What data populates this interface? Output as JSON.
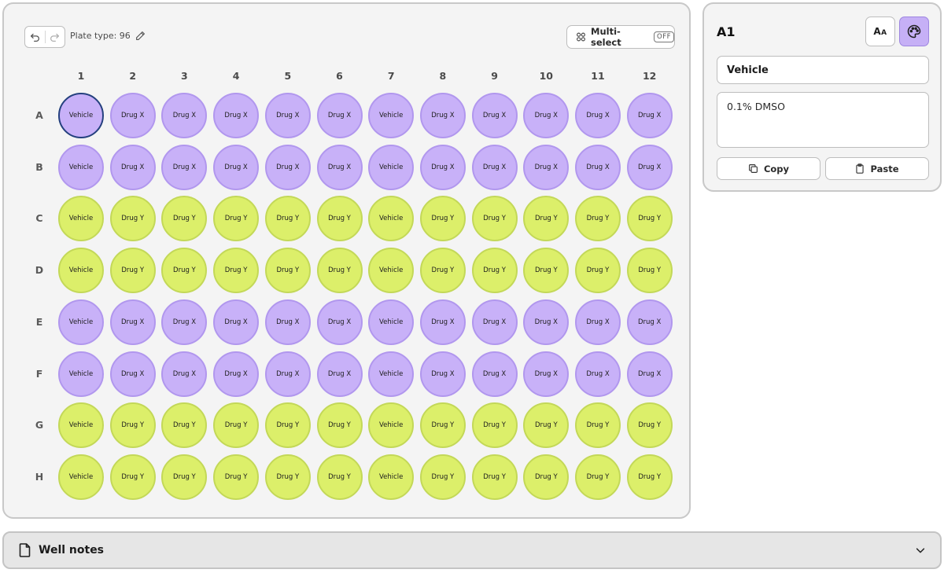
{
  "toolbar": {
    "plate_type_label": "Plate type: 96",
    "multi_select_label": "Multi-select",
    "multi_select_state": "OFF"
  },
  "plate": {
    "columns": [
      "1",
      "2",
      "3",
      "4",
      "5",
      "6",
      "7",
      "8",
      "9",
      "10",
      "11",
      "12"
    ],
    "rows": [
      "A",
      "B",
      "C",
      "D",
      "E",
      "F",
      "G",
      "H"
    ],
    "selected_well": "A1",
    "colors": {
      "purple": "#c8b1f8",
      "yellow": "#dcef6a",
      "selected_border": "#24407e"
    },
    "wells": [
      [
        "Vehicle",
        "Drug X",
        "Drug X",
        "Drug X",
        "Drug X",
        "Drug X",
        "Vehicle",
        "Drug X",
        "Drug X",
        "Drug X",
        "Drug X",
        "Drug X"
      ],
      [
        "Vehicle",
        "Drug X",
        "Drug X",
        "Drug X",
        "Drug X",
        "Drug X",
        "Vehicle",
        "Drug X",
        "Drug X",
        "Drug X",
        "Drug X",
        "Drug X"
      ],
      [
        "Vehicle",
        "Drug Y",
        "Drug Y",
        "Drug Y",
        "Drug Y",
        "Drug Y",
        "Vehicle",
        "Drug Y",
        "Drug Y",
        "Drug Y",
        "Drug Y",
        "Drug Y"
      ],
      [
        "Vehicle",
        "Drug Y",
        "Drug Y",
        "Drug Y",
        "Drug Y",
        "Drug Y",
        "Vehicle",
        "Drug Y",
        "Drug Y",
        "Drug Y",
        "Drug Y",
        "Drug Y"
      ],
      [
        "Vehicle",
        "Drug X",
        "Drug X",
        "Drug X",
        "Drug X",
        "Drug X",
        "Vehicle",
        "Drug X",
        "Drug X",
        "Drug X",
        "Drug X",
        "Drug X"
      ],
      [
        "Vehicle",
        "Drug X",
        "Drug X",
        "Drug X",
        "Drug X",
        "Drug X",
        "Vehicle",
        "Drug X",
        "Drug X",
        "Drug X",
        "Drug X",
        "Drug X"
      ],
      [
        "Vehicle",
        "Drug Y",
        "Drug Y",
        "Drug Y",
        "Drug Y",
        "Drug Y",
        "Vehicle",
        "Drug Y",
        "Drug Y",
        "Drug Y",
        "Drug Y",
        "Drug Y"
      ],
      [
        "Vehicle",
        "Drug Y",
        "Drug Y",
        "Drug Y",
        "Drug Y",
        "Drug Y",
        "Vehicle",
        "Drug Y",
        "Drug Y",
        "Drug Y",
        "Drug Y",
        "Drug Y"
      ]
    ],
    "row_colors": [
      "purple",
      "purple",
      "yellow",
      "yellow",
      "purple",
      "purple",
      "yellow",
      "yellow"
    ]
  },
  "details": {
    "well_id": "A1",
    "text_style_label_big": "A",
    "text_style_label_small": "A",
    "name_value": "Vehicle",
    "description_value": "0.1% DMSO",
    "copy_label": "Copy",
    "paste_label": "Paste"
  },
  "notes": {
    "title": "Well notes"
  }
}
